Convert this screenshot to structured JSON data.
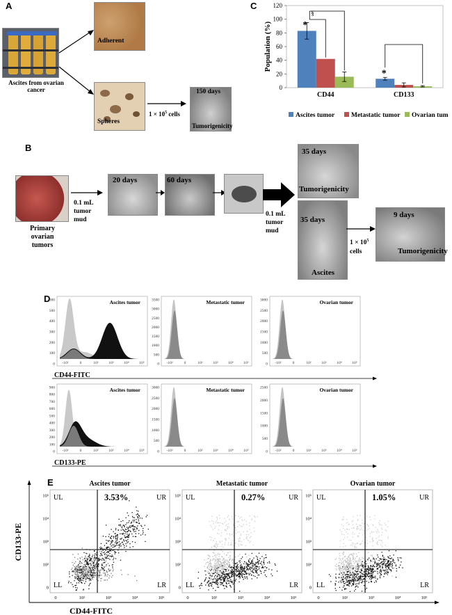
{
  "panels": {
    "a": {
      "label": "A",
      "tube_caption": "Ascites from ovarian cancer",
      "adherent_label": "Adherent",
      "spheres_label": "Spheres",
      "cells_label": "1 × 10",
      "cells_exp": "5",
      "cells_suffix": " cells",
      "mouse_days": "150 days",
      "mouse_label": "Tumorigenicity"
    },
    "b": {
      "label": "B",
      "primary_caption_1": "Primary",
      "primary_caption_2": "ovarian",
      "primary_caption_3": "tumors",
      "mud_1": "0.1 mL",
      "mud_2": "tumor",
      "mud_3": "mud",
      "day20": "20 days",
      "day60": "60 days",
      "day35a": "35 days",
      "tumorigenicity_a": "Tumorigenicity",
      "mud2_1": "0.1 mL",
      "mud2_2": "tumor",
      "mud2_3": "mud",
      "day35b": "35 days",
      "ascites": "Ascites",
      "cells2_1": "1 × 10",
      "cells2_exp": "5",
      "cells2_2": "cells",
      "day9": "9 days",
      "tumorigenicity_b": "Tumorigenicity"
    },
    "c": {
      "label": "C"
    },
    "d": {
      "label": "D",
      "xaxis_top": "CD44-FITC",
      "xaxis_bottom": "CD133-PE",
      "titles": [
        "Ascites tumor",
        "Metastatic tumor",
        "Ovarian tumor"
      ],
      "yticks_top": [
        [
          "600",
          "500",
          "400",
          "300",
          "200",
          "100",
          "0"
        ],
        [
          "3500",
          "3000",
          "2500",
          "2000",
          "1500",
          "1000",
          "500",
          "0"
        ],
        [
          "3000",
          "2500",
          "2000",
          "1500",
          "1000",
          "500",
          "0"
        ]
      ],
      "yticks_bottom": [
        [
          "900",
          "800",
          "700",
          "600",
          "500",
          "400",
          "300",
          "200",
          "100",
          "0"
        ],
        [
          "3000",
          "2500",
          "2000",
          "1500",
          "1000",
          "500",
          "0"
        ],
        [
          "2500",
          "2000",
          "1500",
          "1000",
          "500",
          "0"
        ]
      ],
      "xticks": [
        "-10²",
        "0",
        "10²",
        "10³",
        "10⁴",
        "10⁵"
      ]
    },
    "e": {
      "label": "E",
      "yaxis": "CD133-PE",
      "xaxis": "CD44-FITC",
      "titles": [
        "Ascites tumor",
        "Metastatic tumor",
        "Ovarian tumor"
      ],
      "percents": [
        "3.53%",
        "0.27%",
        "1.05%"
      ],
      "quadrants": [
        "UL",
        "UR",
        "LL",
        "LR"
      ],
      "yticks": [
        "10⁵",
        "10⁴",
        "10³",
        "10²",
        "0"
      ],
      "xticks": [
        "0",
        "10²",
        "10³",
        "10⁴",
        "10⁵"
      ]
    }
  },
  "chart_data": {
    "type": "bar",
    "categories": [
      "CD44",
      "CD133"
    ],
    "series": [
      {
        "name": "Ascites tumor",
        "values": [
          83,
          13
        ],
        "errors": [
          12,
          2
        ],
        "color": "#4f81bd"
      },
      {
        "name": "Metastatic tumor",
        "values": [
          42,
          4
        ],
        "errors": [
          0,
          3
        ],
        "color": "#c0504d"
      },
      {
        "name": "Ovarian tumor",
        "values": [
          16,
          2
        ],
        "errors": [
          7,
          1
        ],
        "color": "#9bbb59"
      }
    ],
    "ylabel": "Population (%)",
    "ylim": [
      0,
      120
    ],
    "yticks": [
      "0",
      "20",
      "40",
      "60",
      "80",
      "100",
      "120"
    ],
    "annotations": [
      "*",
      "§",
      "*"
    ],
    "legend_placement": "bottom"
  }
}
